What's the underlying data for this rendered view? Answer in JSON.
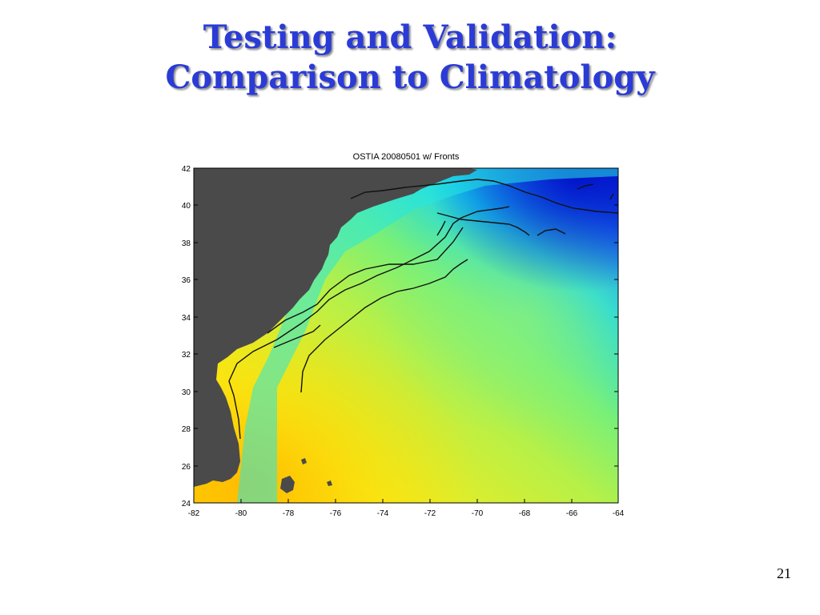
{
  "slide": {
    "title_line1": "Testing and Validation:",
    "title_line2": "Comparison to Climatology",
    "page_number": "21"
  },
  "figure": {
    "title": "OSTIA 20080501 w/ Fronts",
    "x_ticks": [
      "-82",
      "-80",
      "-78",
      "-76",
      "-74",
      "-72",
      "-70",
      "-68",
      "-66",
      "-64"
    ],
    "y_ticks": [
      "42",
      "40",
      "38",
      "36",
      "34",
      "32",
      "30",
      "28",
      "26",
      "24"
    ],
    "colors": {
      "land": "#4a4a4a",
      "front_line": "#111111",
      "warm": "#ffc800",
      "mid": "#9cf26a",
      "cold": "#0a1ed6"
    }
  }
}
